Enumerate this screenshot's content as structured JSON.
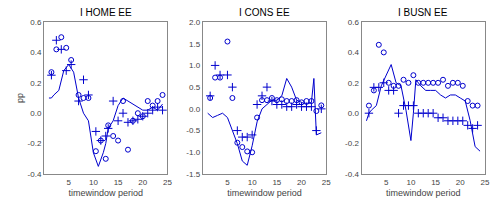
{
  "chart_data": [
    {
      "type": "line",
      "title": "I HOME EE",
      "xlabel": "timewindow period",
      "ylabel": "pp",
      "xlim": [
        0,
        25
      ],
      "xticks": [
        5,
        10,
        15,
        20,
        25
      ],
      "ylim": [
        -0.4,
        0.6
      ],
      "yticks": [
        -0.4,
        -0.2,
        {
          "value": 0.0,
          "label": "0.0"
        },
        0.2,
        0.4,
        0.6
      ],
      "grid": false,
      "series": [
        {
          "type": "line",
          "color": "#0000cd",
          "x": [
            1,
            1.5,
            2,
            3,
            4,
            5,
            6,
            7,
            8,
            9,
            10,
            11,
            12,
            12.5,
            13,
            14,
            15,
            16,
            17,
            18,
            19,
            20,
            21,
            22,
            23,
            24
          ],
          "values": [
            0.1,
            0.1,
            0.12,
            0.15,
            0.28,
            0.32,
            0.27,
            0.1,
            0.0,
            -0.05,
            -0.26,
            -0.35,
            -0.26,
            -0.2,
            -0.1,
            -0.05,
            0.05,
            0.1,
            0.08,
            0.06,
            0.04,
            0.02,
            0.02,
            0.04,
            0.02,
            0.06
          ]
        },
        {
          "type": "scatter",
          "marker": "open_circle",
          "color": "#0000cd",
          "x": [
            1.5,
            2.5,
            3.5,
            4.5,
            5.5,
            7,
            8,
            9,
            10.5,
            11.5,
            12.5,
            13,
            14,
            15,
            16,
            17,
            18,
            19,
            20,
            21,
            22,
            23,
            24
          ],
          "values": [
            0.27,
            0.42,
            0.5,
            0.43,
            0.35,
            0.12,
            0.1,
            0.1,
            -0.25,
            -0.18,
            -0.3,
            -0.08,
            -0.15,
            -0.18,
            0.08,
            -0.24,
            -0.05,
            0.0,
            -0.02,
            0.08,
            0.05,
            0.08,
            0.12
          ]
        },
        {
          "type": "scatter",
          "marker": "plus",
          "color": "#0000cd",
          "x": [
            1.5,
            2.5,
            3.5,
            4.5,
            5.5,
            7,
            8,
            9,
            10.5,
            11.5,
            12.5,
            13,
            14,
            15,
            16,
            17,
            18,
            19,
            20,
            21,
            22,
            23,
            24
          ],
          "values": [
            0.25,
            0.48,
            0.42,
            0.28,
            0.32,
            0.08,
            0.22,
            0.12,
            -0.12,
            -0.18,
            -0.15,
            -0.1,
            0.08,
            -0.05,
            0.0,
            -0.06,
            -0.05,
            -0.04,
            -0.02,
            0.0,
            0.02,
            0.04,
            0.02
          ]
        }
      ]
    },
    {
      "type": "line",
      "title": "I CONS EE",
      "xlabel": "timewindow period",
      "xlim": [
        0,
        25
      ],
      "xticks": [
        5,
        10,
        15,
        20,
        25
      ],
      "ylim": [
        -1.5,
        2.0
      ],
      "yticks": [
        -1.5,
        {
          "value": -1.0,
          "label": "-1.0"
        },
        -0.5,
        {
          "value": 0.0,
          "label": "0.0"
        },
        0.5,
        {
          "value": 1.0,
          "label": "1.0"
        },
        1.5,
        {
          "value": 2.0,
          "label": "2.0"
        }
      ],
      "grid": false,
      "series": [
        {
          "type": "line",
          "color": "#0000cd",
          "x": [
            1,
            1.5,
            2,
            3,
            4,
            5,
            6,
            7,
            8,
            9,
            10,
            11,
            12,
            13,
            14,
            15,
            16,
            17,
            18,
            19,
            20,
            21,
            22,
            22.5,
            23,
            24
          ],
          "values": [
            -0.1,
            -0.15,
            -0.2,
            -0.15,
            -0.1,
            -0.2,
            -0.5,
            -0.8,
            -1.2,
            -1.3,
            -0.85,
            -0.3,
            0.0,
            0.1,
            0.2,
            0.2,
            0.3,
            0.7,
            0.5,
            0.2,
            0.15,
            0.1,
            0.15,
            0.7,
            -0.6,
            -0.55
          ]
        },
        {
          "type": "scatter",
          "marker": "open_circle",
          "color": "#0000cd",
          "x": [
            1.5,
            2.5,
            3.5,
            5,
            6,
            7,
            8,
            9,
            10,
            11,
            12,
            13,
            14,
            15,
            16,
            17,
            18,
            19,
            20,
            21,
            22,
            23,
            24
          ],
          "values": [
            0.25,
            0.72,
            0.72,
            1.55,
            0.25,
            -0.78,
            -0.88,
            -0.98,
            -1.0,
            -0.2,
            0.2,
            0.2,
            0.25,
            0.2,
            0.22,
            0.18,
            0.18,
            0.2,
            0.15,
            0.18,
            0.18,
            -0.05,
            0.08
          ]
        },
        {
          "type": "scatter",
          "marker": "plus",
          "color": "#0000cd",
          "x": [
            1.5,
            2.5,
            3.5,
            5,
            6,
            7,
            8,
            9,
            10,
            11,
            12,
            13,
            14,
            15,
            16,
            17,
            18,
            19,
            20,
            21,
            22,
            23,
            24
          ],
          "values": [
            0.3,
            1.0,
            0.78,
            0.78,
            0.5,
            -0.5,
            -0.65,
            -0.65,
            -0.6,
            0.1,
            0.3,
            0.5,
            0.18,
            0.1,
            0.1,
            0.05,
            0.05,
            0.1,
            0.05,
            0.05,
            0.05,
            -0.5,
            0.0
          ]
        }
      ]
    },
    {
      "type": "line",
      "title": "I BUSN EE",
      "xlabel": "timewindow period",
      "xlim": [
        0,
        25
      ],
      "xticks": [
        5,
        10,
        15,
        20,
        25
      ],
      "ylim": [
        -0.4,
        0.6
      ],
      "yticks": [
        -0.4,
        -0.2,
        {
          "value": 0.0,
          "label": "0.0"
        },
        0.2,
        0.4,
        0.6
      ],
      "grid": false,
      "series": [
        {
          "type": "line",
          "color": "#0000cd",
          "x": [
            1,
            1.5,
            2,
            3,
            4,
            5,
            6,
            7,
            8,
            9,
            10,
            10.5,
            11,
            12,
            13,
            14,
            15,
            16,
            17,
            18,
            19,
            20,
            21,
            22,
            23,
            24
          ],
          "values": [
            -0.05,
            0.0,
            0.02,
            0.05,
            0.18,
            0.25,
            0.32,
            0.2,
            0.18,
            0.02,
            -0.18,
            0.0,
            0.22,
            0.18,
            0.15,
            0.15,
            0.15,
            0.12,
            0.1,
            0.12,
            0.12,
            0.1,
            0.08,
            -0.05,
            -0.22,
            -0.25
          ]
        },
        {
          "type": "scatter",
          "marker": "open_circle",
          "color": "#0000cd",
          "x": [
            1.5,
            2.5,
            3.5,
            4.5,
            5.5,
            6.5,
            7.5,
            8.5,
            9.5,
            10.5,
            11.5,
            12.5,
            13.5,
            14.5,
            15.5,
            16.5,
            17.5,
            18.5,
            19.5,
            20.5,
            21.5,
            22.5,
            23.5
          ],
          "values": [
            0.05,
            0.15,
            0.45,
            0.4,
            0.2,
            0.18,
            0.18,
            0.22,
            0.2,
            0.25,
            0.2,
            0.2,
            0.2,
            0.2,
            0.2,
            0.22,
            0.18,
            0.2,
            0.2,
            0.18,
            0.08,
            0.05,
            0.05
          ]
        },
        {
          "type": "scatter",
          "marker": "plus",
          "color": "#0000cd",
          "x": [
            1.5,
            2.5,
            3.5,
            4.5,
            5.5,
            6.5,
            7.5,
            8.5,
            9.5,
            10.5,
            11.5,
            12.5,
            13.5,
            14.5,
            15.5,
            16.5,
            17.5,
            18.5,
            19.5,
            20.5,
            21.5,
            22.5,
            23.5
          ],
          "values": [
            0.0,
            0.17,
            0.17,
            0.2,
            0.15,
            0.15,
            0.0,
            0.05,
            0.05,
            0.05,
            0.0,
            0.0,
            0.0,
            0.0,
            -0.03,
            -0.03,
            -0.05,
            -0.05,
            -0.05,
            -0.05,
            -0.08,
            -0.1,
            -0.08
          ]
        }
      ]
    }
  ]
}
